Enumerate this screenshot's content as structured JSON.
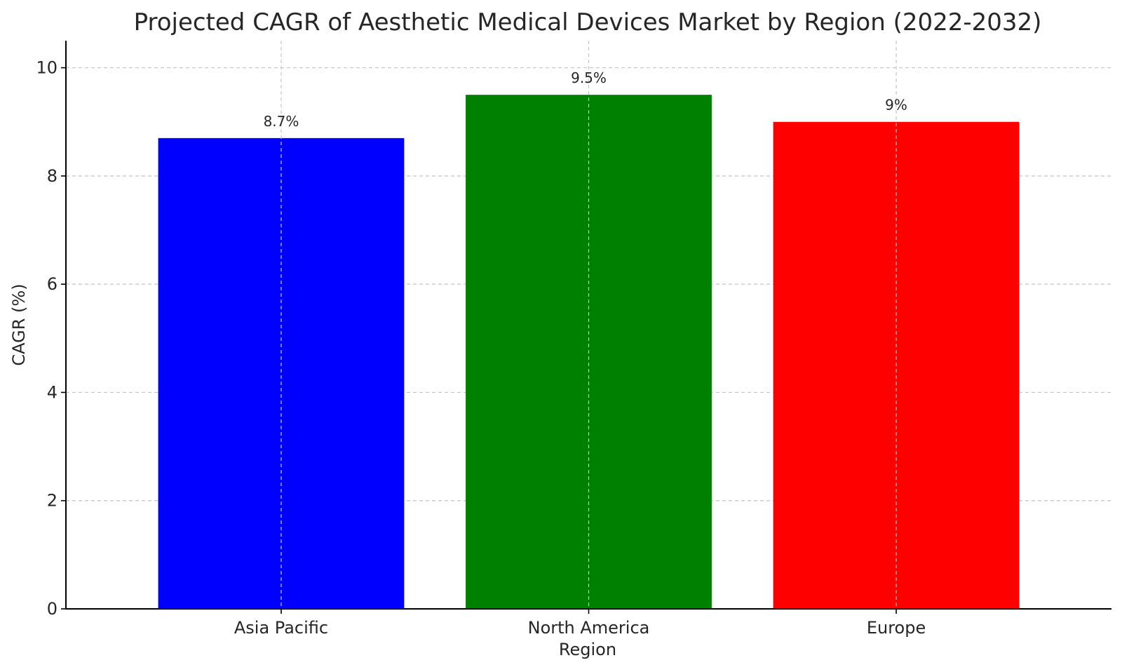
{
  "chart_data": {
    "type": "bar",
    "title": "Projected CAGR of Aesthetic Medical Devices Market by Region (2022-2032)",
    "xlabel": "Region",
    "ylabel": "CAGR (%)",
    "categories": [
      "Asia Pacific",
      "North America",
      "Europe"
    ],
    "values": [
      8.7,
      9.5,
      9.0
    ],
    "value_labels": [
      "8.7%",
      "9.5%",
      "9%"
    ],
    "colors": [
      "#0000ff",
      "#008000",
      "#ff0000"
    ],
    "ylim": [
      0,
      10.5
    ],
    "yticks": [
      0,
      2,
      4,
      6,
      8,
      10
    ],
    "grid": true,
    "legend": "none"
  }
}
